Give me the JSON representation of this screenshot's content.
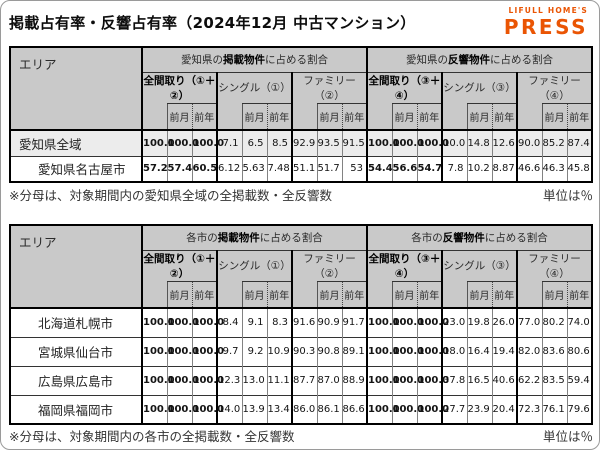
{
  "page": {
    "title": "掲載占有率・反響占有率（2024年12月 中古マンション）",
    "logo_top": "LIFULL HOME'S",
    "logo_bottom": "PRESS"
  },
  "colors": {
    "logo_orange": "#EA5504",
    "header_bg": "#c9c9c9",
    "highlight_row_bg": "#ececec",
    "border": "#000000"
  },
  "tables": [
    {
      "name": "aichi-share-table",
      "area_header": "エリア",
      "subcols": [
        "",
        "前月",
        "前年"
      ],
      "sections": [
        {
          "title_prefix": "愛知県の",
          "title_bold": "掲載物件",
          "title_suffix": "に占める割合",
          "groups": [
            {
              "label": "全間取り（①＋②）",
              "bold": true
            },
            {
              "label": "シングル（①）",
              "bold": false
            },
            {
              "label": "ファミリー（②）",
              "bold": false
            }
          ]
        },
        {
          "title_prefix": "愛知県の",
          "title_bold": "反響物件",
          "title_suffix": "に占める割合",
          "groups": [
            {
              "label": "全間取り（③＋④）",
              "bold": true
            },
            {
              "label": "シングル（③）",
              "bold": false
            },
            {
              "label": "ファミリー（④）",
              "bold": false
            }
          ]
        }
      ],
      "rows": [
        {
          "area": "愛知県全域",
          "indent": false,
          "highlight": true,
          "values": [
            "100.0",
            "100.0",
            "100.0",
            "7.1",
            "6.5",
            "8.5",
            "92.9",
            "93.5",
            "91.5",
            "100.0",
            "100.0",
            "100.0",
            "10.0",
            "14.8",
            "12.6",
            "90.0",
            "85.2",
            "87.4"
          ]
        },
        {
          "area": "愛知県名古屋市",
          "indent": true,
          "highlight": false,
          "values": [
            "57.2",
            "57.4",
            "60.5",
            "6.12",
            "5.63",
            "7.48",
            "51.1",
            "51.7",
            "53",
            "54.4",
            "56.6",
            "54.7",
            "7.8",
            "10.2",
            "8.87",
            "46.6",
            "46.3",
            "45.8"
          ]
        }
      ],
      "footnote": "※分母は、対象期間内の愛知県全域の全掲載数・全反響数",
      "unit": "単位は％"
    },
    {
      "name": "cities-share-table",
      "area_header": "エリア",
      "subcols": [
        "",
        "前月",
        "前年"
      ],
      "sections": [
        {
          "title_prefix": "各市の",
          "title_bold": "掲載物件",
          "title_suffix": "に占める割合",
          "groups": [
            {
              "label": "全間取り（①＋②）",
              "bold": true
            },
            {
              "label": "シングル（①）",
              "bold": false
            },
            {
              "label": "ファミリー（②）",
              "bold": false
            }
          ]
        },
        {
          "title_prefix": "各市の",
          "title_bold": "反響物件",
          "title_suffix": "に占める割合",
          "groups": [
            {
              "label": "全間取り（③＋④）",
              "bold": true
            },
            {
              "label": "シングル（③）",
              "bold": false
            },
            {
              "label": "ファミリー（④）",
              "bold": false
            }
          ]
        }
      ],
      "rows": [
        {
          "area": "北海道札幌市",
          "indent": true,
          "highlight": false,
          "values": [
            "100.0",
            "100.0",
            "100.0",
            "8.4",
            "9.1",
            "8.3",
            "91.6",
            "90.9",
            "91.7",
            "100.0",
            "100.0",
            "100.0",
            "23.0",
            "19.8",
            "26.0",
            "77.0",
            "80.2",
            "74.0"
          ]
        },
        {
          "area": "宮城県仙台市",
          "indent": true,
          "highlight": false,
          "values": [
            "100.0",
            "100.0",
            "100.0",
            "9.7",
            "9.2",
            "10.9",
            "90.3",
            "90.8",
            "89.1",
            "100.0",
            "100.0",
            "100.0",
            "18.0",
            "16.4",
            "19.4",
            "82.0",
            "83.6",
            "80.6"
          ]
        },
        {
          "area": "広島県広島市",
          "indent": true,
          "highlight": false,
          "values": [
            "100.0",
            "100.0",
            "100.0",
            "12.3",
            "13.0",
            "11.1",
            "87.7",
            "87.0",
            "88.9",
            "100.0",
            "100.0",
            "100.0",
            "37.8",
            "16.5",
            "40.6",
            "62.2",
            "83.5",
            "59.4"
          ]
        },
        {
          "area": "福岡県福岡市",
          "indent": true,
          "highlight": false,
          "values": [
            "100.0",
            "100.0",
            "100.0",
            "14.0",
            "13.9",
            "13.4",
            "86.0",
            "86.1",
            "86.6",
            "100.0",
            "100.0",
            "100.0",
            "27.7",
            "23.9",
            "20.4",
            "72.3",
            "76.1",
            "79.6"
          ]
        }
      ],
      "footnote": "※分母は、対象期間内の各市の全掲載数・全反響数",
      "unit": "単位は％"
    }
  ]
}
